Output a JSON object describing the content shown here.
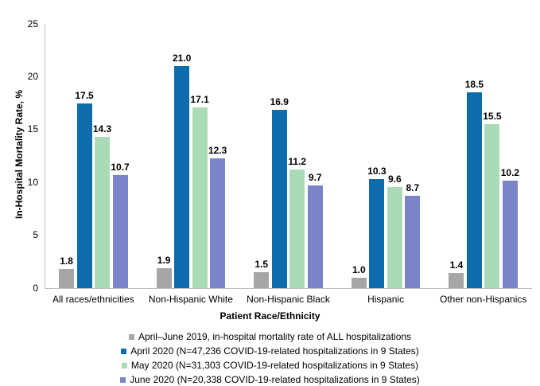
{
  "chart_data": {
    "type": "bar",
    "title": "",
    "xlabel": "Patient Race/Ethnicity",
    "ylabel": "In-Hospital Mortality Rate, %",
    "ylim": [
      0,
      25
    ],
    "yticks": [
      0,
      5,
      10,
      15,
      20,
      25
    ],
    "grid": false,
    "legend_position": "bottom",
    "value_labels": true,
    "categories": [
      "All races/ethnicities",
      "Non-Hispanic White",
      "Non-Hispanic Black",
      "Hispanic",
      "Other non-Hispanics"
    ],
    "series": [
      {
        "name": "April–June 2019, in-hospital mortality rate of ALL hospitalizations",
        "color": "#a6a6a6",
        "values": [
          1.8,
          1.9,
          1.5,
          1.0,
          1.4
        ]
      },
      {
        "name": "April 2020 (N=47,236 COVID-19-related hospitalizations in 9 States)",
        "color": "#0e6bac",
        "values": [
          17.5,
          21.0,
          16.9,
          10.3,
          18.5
        ]
      },
      {
        "name": "May 2020 (N=31,303 COVID-19-related hospitalizations in 9 States)",
        "color": "#abdab6",
        "values": [
          14.3,
          17.1,
          11.2,
          9.6,
          15.5
        ]
      },
      {
        "name": "June 2020 (N=20,338 COVID-19-related hospitalizations in 9 States)",
        "color": "#7b84c8",
        "values": [
          10.7,
          12.3,
          9.7,
          8.7,
          10.2
        ]
      }
    ]
  },
  "colors": {
    "axis_line": "#bfbfbf",
    "text": "#000000",
    "background": "#ffffff"
  }
}
